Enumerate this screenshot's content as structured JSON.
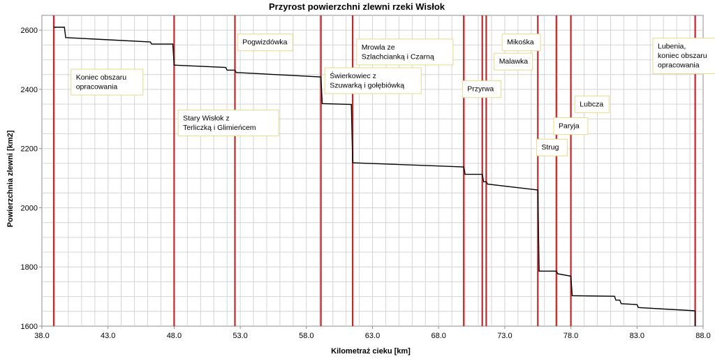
{
  "chart_data": {
    "type": "line",
    "title": "Przyrost powierzchni zlewni rzeki Wisłok",
    "xlabel": "Kilometraż  cieku [km]",
    "ylabel": "Powierzchnia zlewni [km2]",
    "xlim": [
      38.0,
      88.0
    ],
    "ylim": [
      1600,
      2650
    ],
    "x_ticks": [
      "38.0",
      "43.0",
      "48.0",
      "53.0",
      "58.0",
      "63.0",
      "68.0",
      "73.0",
      "78.0",
      "83.0",
      "88.0"
    ],
    "y_ticks": [
      "1600",
      "1800",
      "2000",
      "2200",
      "2400",
      "2600"
    ],
    "grid": true,
    "legend": "none",
    "series_color": "#000000",
    "marker_color": "#c0282d",
    "x": [
      38.9,
      39.7,
      39.8,
      46.2,
      46.3,
      47.9,
      48.0,
      51.9,
      52.0,
      52.6,
      52.7,
      59.1,
      59.2,
      61.4,
      61.5,
      69.9,
      70.0,
      71.3,
      71.4,
      71.6,
      71.7,
      75.5,
      75.6,
      76.9,
      77.0,
      78.0,
      78.1,
      81.3,
      81.4,
      81.7,
      81.8,
      83.0,
      83.1,
      87.4
    ],
    "y": [
      2610,
      2610,
      2575,
      2560,
      2553,
      2553,
      2482,
      2474,
      2465,
      2465,
      2457,
      2442,
      2352,
      2349,
      2152,
      2138,
      2113,
      2113,
      2088,
      2088,
      2080,
      2060,
      1786,
      1786,
      1777,
      1769,
      1703,
      1701,
      1688,
      1688,
      1676,
      1673,
      1663,
      1652
    ],
    "markers": [
      38.9,
      48.0,
      52.6,
      59.1,
      61.5,
      69.9,
      71.3,
      71.6,
      75.5,
      76.9,
      78.0,
      87.4
    ],
    "annotations": [
      {
        "lines": [
          "Koniec  obszaru",
          "opracowania"
        ],
        "x": 40.2,
        "y": 2468
      },
      {
        "lines": [
          "Pogwizdówka"
        ],
        "x": 52.8,
        "y": 2587
      },
      {
        "lines": [
          "Stary Wisłok z",
          "Terliczką i Glimieńcem"
        ],
        "x": 48.3,
        "y": 2330
      },
      {
        "lines": [
          "Mrowla ze",
          "Szlachcianką i Czarną"
        ],
        "x": 61.8,
        "y": 2570
      },
      {
        "lines": [
          "Świerkowiec z",
          "Szuwarką i gołębiówką"
        ],
        "x": 59.4,
        "y": 2473
      },
      {
        "lines": [
          "Mikośka"
        ],
        "x": 72.8,
        "y": 2587
      },
      {
        "lines": [
          "Malawka"
        ],
        "x": 72.2,
        "y": 2522
      },
      {
        "lines": [
          "Przyrwa"
        ],
        "x": 69.8,
        "y": 2429
      },
      {
        "lines": [
          "Lubczа"
        ],
        "x": 78.3,
        "y": 2378
      },
      {
        "lines": [
          "Paryja"
        ],
        "x": 76.7,
        "y": 2304
      },
      {
        "lines": [
          "Strug"
        ],
        "x": 75.4,
        "y": 2232
      },
      {
        "lines": [
          "Lubenia,",
          "koniec obszaru",
          "opracowania"
        ],
        "x": 84.2,
        "y": 2573
      }
    ]
  }
}
